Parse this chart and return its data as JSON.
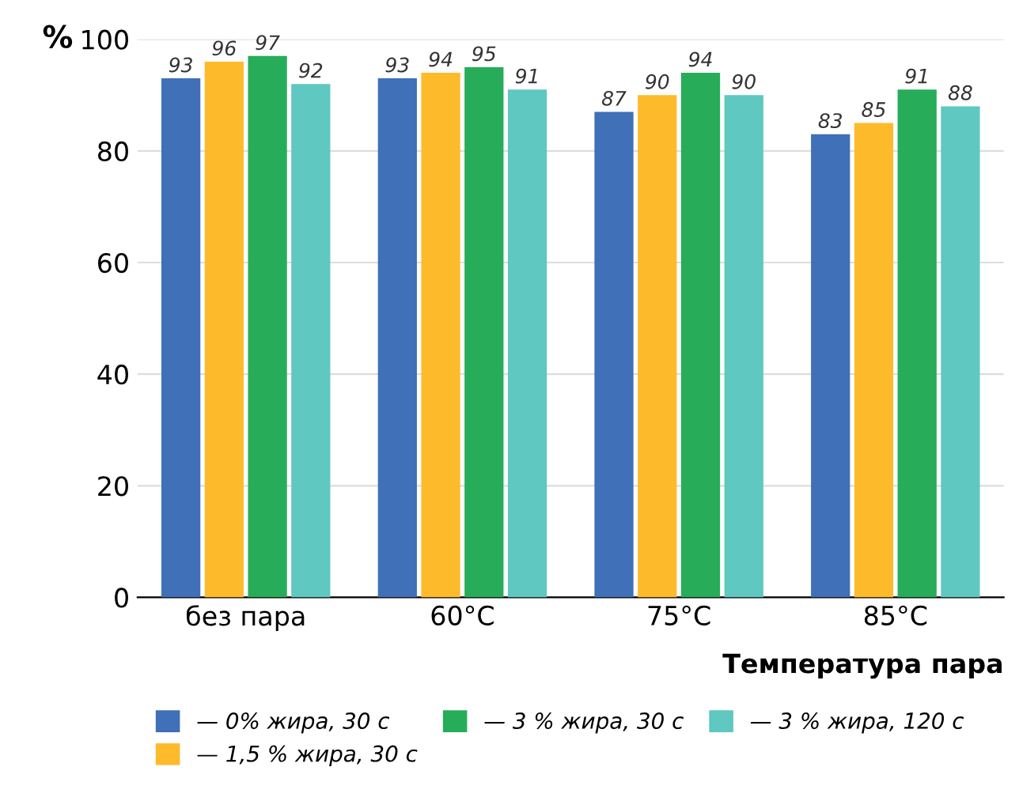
{
  "chart_data": {
    "type": "bar",
    "ylabel": "%",
    "xlabel": "Температура пара",
    "categories": [
      "без пара",
      "60°C",
      "75°C",
      "85°C"
    ],
    "series": [
      {
        "name": "— 0% жира, 30 с",
        "color": "#3f70b8",
        "values": [
          93,
          93,
          87,
          83
        ]
      },
      {
        "name": "— 1,5 % жира, 30 с",
        "color": "#fdbb2c",
        "values": [
          96,
          94,
          90,
          85
        ]
      },
      {
        "name": "— 3 % жира, 30 с",
        "color": "#27ad5a",
        "values": [
          97,
          95,
          94,
          91
        ]
      },
      {
        "name": "— 3 % жира, 120 с",
        "color": "#5fc8c0",
        "values": [
          92,
          91,
          90,
          88
        ]
      }
    ],
    "ylim": [
      0,
      100
    ],
    "yticks": [
      0,
      20,
      40,
      60,
      80,
      100
    ],
    "grid": "y",
    "legend": "bottom",
    "data_labels": true
  }
}
